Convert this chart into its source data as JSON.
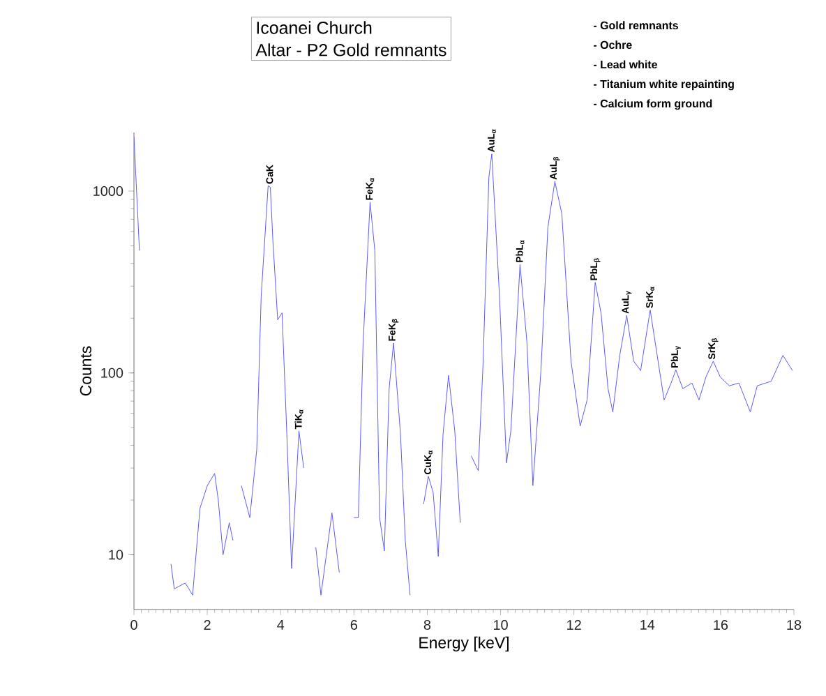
{
  "chart_data": {
    "type": "line",
    "title": "Icoanei Church",
    "subtitle": "Altar - P2 Gold remnants",
    "xlabel": "Energy [keV]",
    "ylabel": "Counts",
    "x": [
      0,
      0.15,
      0.28,
      0.95,
      1.01,
      1.1,
      1.4,
      1.6,
      1.8,
      2.0,
      2.2,
      2.3,
      2.43,
      2.6,
      2.7,
      2.78,
      2.93,
      3.16,
      3.35,
      3.47,
      3.66,
      3.72,
      3.79,
      3.92,
      4.04,
      4.17,
      4.3,
      4.5,
      4.63,
      4.76,
      4.96,
      5.1,
      5.4,
      5.6,
      5.75,
      6.0,
      6.12,
      6.25,
      6.44,
      6.57,
      6.7,
      6.83,
      6.96,
      7.08,
      7.27,
      7.4,
      7.53,
      7.7,
      7.9,
      8.03,
      8.16,
      8.3,
      8.43,
      8.58,
      8.75,
      8.9,
      9.0,
      9.2,
      9.39,
      9.52,
      9.68,
      9.76,
      9.97,
      10.16,
      10.28,
      10.53,
      10.72,
      10.88,
      11.1,
      11.29,
      11.48,
      11.67,
      11.92,
      12.17,
      12.36,
      12.58,
      12.74,
      12.93,
      13.06,
      13.25,
      13.44,
      13.63,
      13.82,
      14.08,
      14.27,
      14.46,
      14.65,
      14.78,
      14.97,
      15.22,
      15.41,
      15.6,
      15.8,
      15.99,
      16.24,
      16.5,
      16.81,
      17.0,
      17.38,
      17.7,
      17.96
    ],
    "series": [
      {
        "color": "#5a5aff",
        "values": [
          2000,
          471,
          null,
          null,
          8.9,
          6.5,
          7,
          6,
          18,
          24,
          28,
          20,
          10,
          15,
          12,
          null,
          24,
          16,
          38,
          264,
          1070,
          1050,
          532,
          196,
          214,
          46,
          8.4,
          48,
          30,
          null,
          11,
          6,
          17,
          8,
          null,
          16,
          16,
          146,
          870,
          470,
          16,
          10.5,
          82,
          146,
          46,
          12,
          6,
          null,
          19,
          27,
          22,
          9.8,
          46,
          97,
          48,
          15,
          null,
          35,
          29,
          110,
          1190,
          1600,
          264,
          32,
          48,
          395,
          146,
          24,
          103,
          634,
          1130,
          750,
          116,
          51,
          71,
          315,
          213,
          82,
          61,
          125,
          207,
          116,
          103,
          222,
          125,
          71,
          88,
          104,
          82,
          88,
          71,
          95,
          116,
          95,
          85,
          88,
          61,
          85,
          90,
          125,
          103
        ]
      }
    ],
    "xlim": [
      0,
      18
    ],
    "ylim": [
      5,
      2100
    ],
    "xticks": [
      0,
      2,
      4,
      6,
      8,
      10,
      12,
      14,
      16,
      18
    ],
    "yticks": [
      10,
      100,
      1000
    ],
    "log": "y",
    "marker": "none",
    "line_style": "solid",
    "grid": false,
    "annotations": [
      "- Gold remnants",
      "- Ochre",
      "- Lead white",
      "- Titanium white repainting",
      "- Calcium form ground",
      {
        "text": "CaK",
        "x": 3.7,
        "y": 1070
      },
      {
        "text": "TiK$_{α}$",
        "x": 4.5,
        "y": 48
      },
      {
        "text": "FeK$_{α}$",
        "x": 6.44,
        "y": 870
      },
      {
        "text": "FeK$_{β}$",
        "x": 7.08,
        "y": 146
      },
      {
        "text": "CuK$_{α}$",
        "x": 8.03,
        "y": 27
      },
      {
        "text": "AuL$_{α}$",
        "x": 9.76,
        "y": 1600
      },
      {
        "text": "PbL$_{α}$",
        "x": 10.53,
        "y": 395
      },
      {
        "text": "AuL$_{β}$",
        "x": 11.48,
        "y": 1130
      },
      {
        "text": "PbL$_{β}$",
        "x": 12.58,
        "y": 315
      },
      {
        "text": "AuL$_{γ}$",
        "x": 13.44,
        "y": 207
      },
      {
        "text": "SrK$_{α}$",
        "x": 14.08,
        "y": 222
      },
      {
        "text": "PbL$_{γ}$",
        "x": 14.78,
        "y": 104
      },
      {
        "text": "SrK$_{β}$",
        "x": 15.8,
        "y": 116
      }
    ]
  }
}
